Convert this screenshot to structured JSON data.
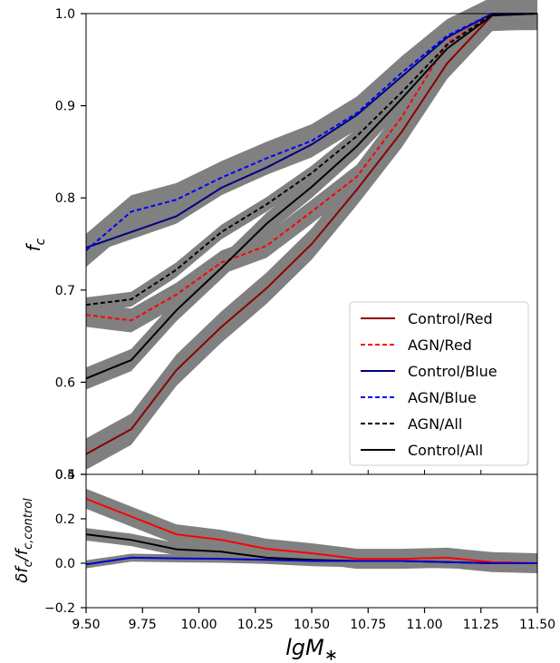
{
  "chart_data": [
    {
      "type": "line",
      "panel": "main",
      "ylabel_base": "f",
      "ylabel_sub": "c",
      "xlim": [
        9.5,
        11.5
      ],
      "ylim": [
        0.5,
        1.0
      ],
      "yticks": [
        "0.5",
        "0.6",
        "0.7",
        "0.8",
        "0.9",
        "1.0"
      ],
      "legend_position": "lower-right",
      "x": [
        9.5,
        9.7,
        9.9,
        10.1,
        10.3,
        10.5,
        10.7,
        10.9,
        11.1,
        11.3,
        11.5
      ],
      "series": [
        {
          "name": "Control/Red",
          "color": "#8b0000",
          "dash": "solid",
          "band": 0.017,
          "values": [
            0.522,
            0.549,
            0.613,
            0.66,
            0.702,
            0.75,
            0.809,
            0.872,
            0.946,
            0.998,
            1.0
          ]
        },
        {
          "name": "AGN/Red",
          "color": "#ff0000",
          "dash": "dashed",
          "band": 0.013,
          "values": [
            0.673,
            0.667,
            0.695,
            0.73,
            0.748,
            0.785,
            0.823,
            0.888,
            0.968,
            0.999,
            1.0
          ]
        },
        {
          "name": "Control/Blue",
          "color": "#000080",
          "dash": "solid",
          "band": 0.008,
          "values": [
            0.746,
            0.763,
            0.78,
            0.811,
            0.833,
            0.858,
            0.89,
            0.932,
            0.974,
            1.0,
            1.0
          ]
        },
        {
          "name": "AGN/Blue",
          "color": "#0000ff",
          "dash": "dashed",
          "band": 0.018,
          "values": [
            0.743,
            0.785,
            0.798,
            0.822,
            0.843,
            0.862,
            0.892,
            0.936,
            0.976,
            1.0,
            1.0
          ]
        },
        {
          "name": "AGN/All",
          "color": "#000000",
          "dash": "dashed",
          "band": 0.008,
          "values": [
            0.684,
            0.69,
            0.722,
            0.763,
            0.793,
            0.827,
            0.867,
            0.915,
            0.966,
            0.999,
            1.0
          ]
        },
        {
          "name": "Control/All",
          "color": "#000000",
          "dash": "solid",
          "band": 0.012,
          "values": [
            0.604,
            0.624,
            0.678,
            0.724,
            0.772,
            0.812,
            0.856,
            0.908,
            0.962,
            0.998,
            1.0
          ]
        }
      ]
    },
    {
      "type": "line",
      "panel": "ratio",
      "ylabel": "δf_c/f_c,control",
      "xlabel": "lgM*",
      "xlim": [
        9.5,
        11.5
      ],
      "ylim": [
        -0.2,
        0.4
      ],
      "xticks": [
        "9.50",
        "9.75",
        "10.00",
        "10.25",
        "10.50",
        "10.75",
        "11.00",
        "11.25",
        "11.50"
      ],
      "yticks": [
        "−0.2",
        "0.0",
        "0.2",
        "0.4"
      ],
      "x": [
        9.5,
        9.7,
        9.9,
        10.1,
        10.3,
        10.5,
        10.7,
        10.9,
        11.1,
        11.3,
        11.5
      ],
      "series": [
        {
          "color": "#ff0000",
          "band": 0.045,
          "values": [
            0.29,
            0.21,
            0.13,
            0.105,
            0.065,
            0.045,
            0.02,
            0.02,
            0.025,
            0.005,
            0.0
          ]
        },
        {
          "color": "#000000",
          "band": 0.028,
          "values": [
            0.13,
            0.105,
            0.063,
            0.052,
            0.025,
            0.015,
            0.01,
            0.01,
            0.005,
            0.0,
            0.0
          ]
        },
        {
          "color": "#0000cd",
          "band": 0.018,
          "values": [
            -0.005,
            0.025,
            0.022,
            0.02,
            0.015,
            0.01,
            0.01,
            0.01,
            0.005,
            0.0,
            0.0
          ]
        }
      ]
    }
  ],
  "band_color": "#808080"
}
